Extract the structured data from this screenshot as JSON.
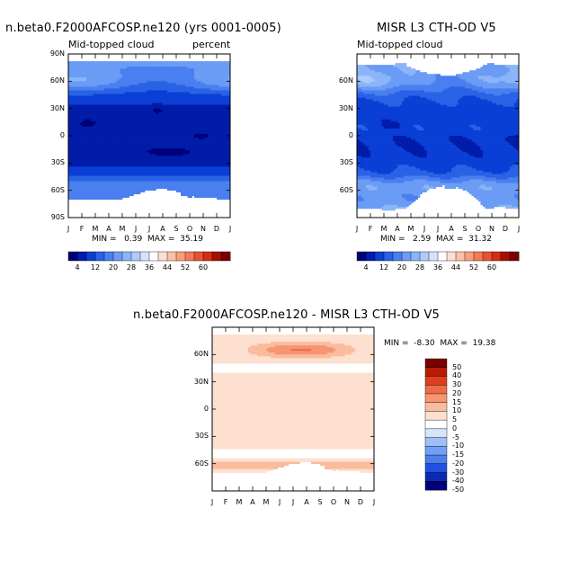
{
  "palette_top": [
    "#00007a",
    "#001ca8",
    "#0a3fd6",
    "#2a62e6",
    "#4a7ff0",
    "#6a9cf6",
    "#8bb5f8",
    "#aecbfa",
    "#d2e3fb",
    "#ffffff",
    "#fde0d0",
    "#fcc1a7",
    "#f99e7d",
    "#f37a57",
    "#e8532f",
    "#d12e12",
    "#a80f00",
    "#7a0000"
  ],
  "palette_diff": [
    "#00007a",
    "#0a2ab4",
    "#2350e0",
    "#4a7ff0",
    "#729ff6",
    "#9ebff9",
    "#d5e6fb",
    "#ffffff",
    "#fde0d0",
    "#fbbc9d",
    "#f79472",
    "#ef6a46",
    "#dd3f1e",
    "#b71b05",
    "#7a0000"
  ],
  "chart_data": [
    {
      "id": "model",
      "type": "heatmap",
      "title": "n.beta0.F2000AFCOSP.ne120 (yrs 0001-0005)",
      "left_label": "Mid-topped cloud",
      "right_label": "percent",
      "x_ticks": [
        "J",
        "F",
        "M",
        "A",
        "M",
        "J",
        "J",
        "A",
        "S",
        "O",
        "N",
        "D",
        "J"
      ],
      "y_ticks": [
        "90N",
        "60N",
        "30N",
        "0",
        "30S",
        "60S",
        "90S"
      ],
      "ylim": [
        -90,
        90
      ],
      "min": "0.39",
      "max": "35.19",
      "min_text": "MIN =",
      "max_text": "MAX =",
      "colorbar_ticks": [
        "4",
        "12",
        "20",
        "28",
        "36",
        "44",
        "52",
        "60"
      ]
    },
    {
      "id": "obs",
      "type": "heatmap",
      "title": "MISR L3 CTH-OD V5",
      "left_label": "Mid-topped cloud",
      "x_ticks": [
        "J",
        "F",
        "M",
        "A",
        "M",
        "J",
        "J",
        "A",
        "S",
        "O",
        "N",
        "D",
        "J"
      ],
      "y_ticks": [
        "60N",
        "30N",
        "0",
        "30S",
        "60S"
      ],
      "ylim": [
        -90,
        90
      ],
      "min": "2.59",
      "max": "31.32",
      "min_text": "MIN =",
      "max_text": "MAX =",
      "colorbar_ticks": [
        "4",
        "12",
        "20",
        "28",
        "36",
        "44",
        "52",
        "60"
      ]
    },
    {
      "id": "diff",
      "type": "heatmap",
      "title": "n.beta0.F2000AFCOSP.ne120 - MISR L3 CTH-OD V5",
      "x_ticks": [
        "J",
        "F",
        "M",
        "A",
        "M",
        "J",
        "J",
        "A",
        "S",
        "O",
        "N",
        "D",
        "J"
      ],
      "y_ticks": [
        "60N",
        "30N",
        "0",
        "30S",
        "60S"
      ],
      "ylim": [
        -90,
        90
      ],
      "min": "-8.30",
      "max": "19.38",
      "min_text": "MIN =",
      "max_text": "MAX =",
      "colorbar_ticks": [
        "50",
        "40",
        "30",
        "20",
        "15",
        "10",
        "5",
        "0",
        "-5",
        "-10",
        "-15",
        "-20",
        "-30",
        "-40",
        "-50"
      ]
    }
  ]
}
